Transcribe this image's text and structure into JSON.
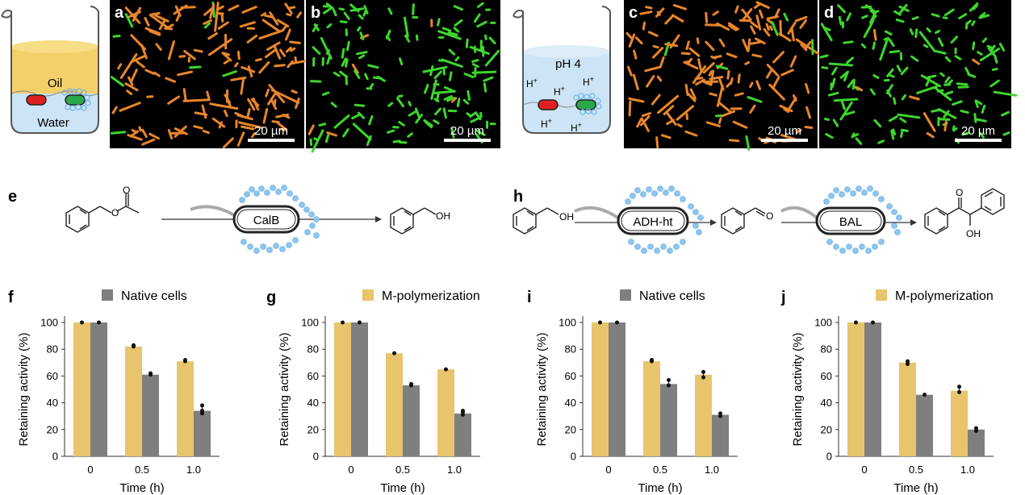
{
  "colors": {
    "oil": "#f4d06a",
    "water": "#cce4f5",
    "red_cell": "#e02020",
    "green_cell": "#2aa84a",
    "orange_bacteria": "#e8862a",
    "green_bacteria": "#3dd62c",
    "yellow_bar": "#e8c46c",
    "gray_bar": "#7f7f7f",
    "polymer_blue": "#8fc6ee"
  },
  "top": {
    "beaker1": {
      "oil_label": "Oil",
      "water_label": "Water"
    },
    "beaker2": {
      "ph_label": "pH 4",
      "ion_label": "H",
      "ion_sup": "+"
    },
    "micrographs": [
      {
        "letter": "a",
        "scale_label": "20 µm",
        "color": "orange"
      },
      {
        "letter": "b",
        "scale_label": "20 µm",
        "color": "green"
      },
      {
        "letter": "c",
        "scale_label": "20 µm",
        "color": "orange"
      },
      {
        "letter": "d",
        "scale_label": "20 µm",
        "color": "green"
      }
    ]
  },
  "schemes": {
    "e": {
      "letter": "e",
      "enzyme": "CalB",
      "product_oh": "OH"
    },
    "h": {
      "letter": "h",
      "enzyme1": "ADH-ht",
      "enzyme2": "BAL",
      "oh": "OH",
      "o": "O"
    }
  },
  "chart_data": [
    {
      "panel": "f",
      "type": "bar",
      "legend": "Native cells",
      "legend_color": "#7f7f7f",
      "categories": [
        "0",
        "0.5",
        "1.0"
      ],
      "xlabel": "Time (h)",
      "ylabel": "Retaining activity (%)",
      "ylim": [
        0,
        100
      ],
      "yticks": [
        "0",
        "20",
        "40",
        "60",
        "80",
        "100"
      ],
      "series": [
        {
          "values": [
            100,
            82,
            71
          ]
        },
        {
          "values": [
            100,
            61,
            34
          ]
        }
      ],
      "points": [
        [
          [
            100
          ],
          [
            100
          ]
        ],
        [
          [
            82,
            83
          ],
          [
            61,
            62
          ]
        ],
        [
          [
            71,
            72
          ],
          [
            32,
            34,
            38
          ]
        ]
      ]
    },
    {
      "panel": "g",
      "type": "bar",
      "legend": "M-polymerization",
      "legend_color": "#e8c46c",
      "categories": [
        "0",
        "0.5",
        "1.0"
      ],
      "xlabel": "Time (h)",
      "ylabel": "Retaining activity (%)",
      "ylim": [
        0,
        100
      ],
      "yticks": [
        "0",
        "20",
        "40",
        "60",
        "80",
        "100"
      ],
      "series": [
        {
          "values": [
            100,
            77,
            65
          ]
        },
        {
          "values": [
            100,
            53,
            32
          ]
        }
      ],
      "points": [
        [
          [
            100
          ],
          [
            100
          ]
        ],
        [
          [
            77
          ],
          [
            53,
            54
          ]
        ],
        [
          [
            65
          ],
          [
            31,
            33,
            34
          ]
        ]
      ]
    },
    {
      "panel": "i",
      "type": "bar",
      "legend": "Native cells",
      "legend_color": "#7f7f7f",
      "categories": [
        "0",
        "0.5",
        "1.0"
      ],
      "xlabel": "Time (h)",
      "ylabel": "Retaining activity (%)",
      "ylim": [
        0,
        100
      ],
      "yticks": [
        "0",
        "20",
        "40",
        "60",
        "80",
        "100"
      ],
      "series": [
        {
          "values": [
            100,
            71,
            61
          ]
        },
        {
          "values": [
            100,
            54,
            31
          ]
        }
      ],
      "points": [
        [
          [
            100
          ],
          [
            100
          ]
        ],
        [
          [
            71,
            72
          ],
          [
            53,
            57
          ]
        ],
        [
          [
            59,
            63
          ],
          [
            30,
            32
          ]
        ]
      ]
    },
    {
      "panel": "j",
      "type": "bar",
      "legend": "M-polymerization",
      "legend_color": "#e8c46c",
      "categories": [
        "0",
        "0.5",
        "1.0"
      ],
      "xlabel": "Time (h)",
      "ylabel": "Retaining activity (%)",
      "ylim": [
        0,
        100
      ],
      "yticks": [
        "0",
        "20",
        "40",
        "60",
        "80",
        "100"
      ],
      "series": [
        {
          "values": [
            100,
            70,
            49
          ]
        },
        {
          "values": [
            100,
            46,
            20
          ]
        }
      ],
      "points": [
        [
          [
            100
          ],
          [
            100
          ]
        ],
        [
          [
            69,
            71
          ],
          [
            46
          ]
        ],
        [
          [
            48,
            52
          ],
          [
            19,
            21
          ]
        ]
      ]
    }
  ]
}
